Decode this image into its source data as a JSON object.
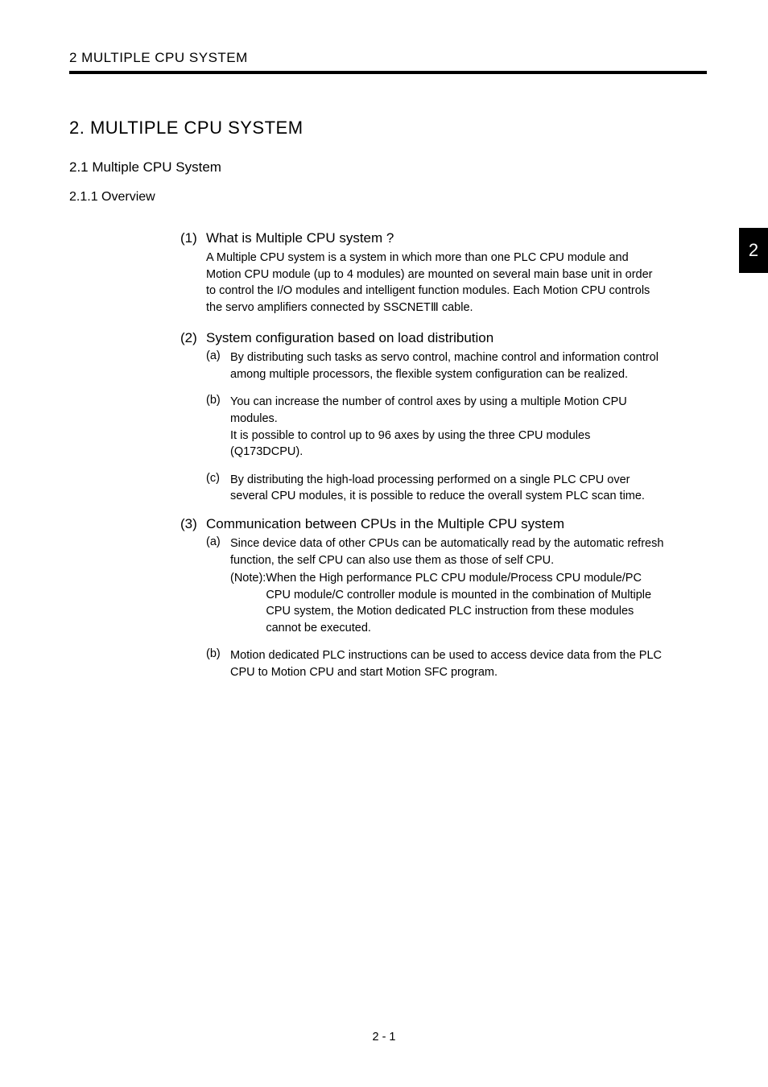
{
  "running_header": "2   MULTIPLE CPU SYSTEM",
  "chapter_tab": "2",
  "chapter_title": "2. MULTIPLE CPU SYSTEM",
  "section_title": "2.1 Multiple CPU System",
  "subsection_title": "2.1.1 Overview",
  "items": {
    "i1": {
      "num": "(1)",
      "heading": "What is Multiple CPU system ?",
      "body": "A Multiple CPU system is a system in which more than one PLC CPU module and Motion CPU module (up to 4 modules) are mounted on several main base unit in order to control the I/O modules and intelligent function modules. Each Motion CPU controls the servo amplifiers connected by SSCNETⅢ cable."
    },
    "i2": {
      "num": "(2)",
      "heading": "System configuration based on load distribution",
      "a": {
        "letter": "(a)",
        "body": "By distributing such tasks as servo control, machine control and information control among multiple processors, the flexible system configuration can be realized."
      },
      "b": {
        "letter": "(b)",
        "body_l1": "You can increase the number of control axes by using a multiple Motion CPU modules.",
        "body_l2": "It is possible to control up to 96 axes by using the three CPU modules (Q173DCPU)."
      },
      "c": {
        "letter": "(c)",
        "body": "By distributing the high-load processing performed on a single PLC CPU over several CPU modules, it is possible to reduce the overall system PLC scan time."
      }
    },
    "i3": {
      "num": "(3)",
      "heading": "Communication between CPUs in the Multiple CPU system",
      "a": {
        "letter": "(a)",
        "body": "Since device data of other CPUs can be automatically read by the automatic refresh function, the self CPU can also use them as those of self CPU.",
        "note_label": "(Note): ",
        "note_body": "When the High performance PLC CPU module/Process CPU module/PC CPU module/C controller module is mounted in the combination of Multiple CPU system, the Motion dedicated PLC instruction from these modules cannot be executed."
      },
      "b": {
        "letter": "(b)",
        "body": "Motion dedicated PLC instructions can be used to access device data from the PLC CPU to Motion CPU and start Motion SFC program."
      }
    }
  },
  "footer_page": "2 - 1"
}
